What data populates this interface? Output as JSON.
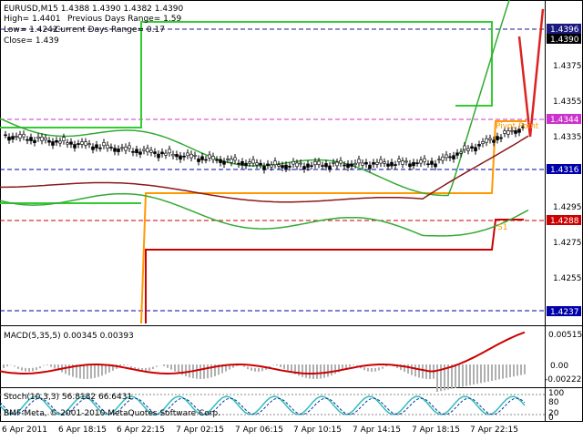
{
  "header": {
    "symbol_line": "EURUSD,M15  1.4388 1.4390 1.4382 1.4390",
    "high_label": "High= 1.4401",
    "prev_range_label": "Previous Days Range= 1.59",
    "low_label": "Low= 1.4242",
    "current_range_label": "Current Days Range= 0.17",
    "close_label": "Close= 1.439"
  },
  "price_axis": {
    "ticks": [
      "1.4375",
      "1.4355",
      "1.4335",
      "1.4295",
      "1.4275",
      "1.4255"
    ],
    "badges": [
      {
        "label": "1.4396",
        "color": "#1a1a80"
      },
      {
        "label": "1.4390",
        "color": "#000000"
      },
      {
        "label": "1.4344",
        "color": "#cc33cc"
      },
      {
        "label": "1.4316",
        "color": "#0000aa"
      },
      {
        "label": "1.4288",
        "color": "#cc0000"
      },
      {
        "label": "1.4237",
        "color": "#0000aa"
      }
    ]
  },
  "chart_labels": {
    "pivot_point": "Pivot Point",
    "s1": "S1"
  },
  "macd": {
    "title": "MACD(5,35,5) 0.00345 0.00393",
    "ticks": [
      "0.00515",
      "0.00",
      "-0.00222"
    ]
  },
  "stoch": {
    "title": "Stoch(10,3,3) 56.8182 66.6431",
    "ticks": [
      "100",
      "80",
      "20",
      "0"
    ]
  },
  "copyright": "BMF-Meta, © 2001-2010 MetaQuotes Software Corp.",
  "time_axis": [
    "6 Apr 2011",
    "6 Apr 18:15",
    "6 Apr 22:15",
    "7 Apr 02:15",
    "7 Apr 06:15",
    "7 Apr 10:15",
    "7 Apr 14:15",
    "7 Apr 18:15",
    "7 Apr 22:15"
  ],
  "colors": {
    "bollinger": "#33aa33",
    "ma": "#8b1a1a",
    "range_green": "#33cc33",
    "range_orange": "#ff9900",
    "range_red": "#cc0000",
    "macd_signal": "#cc0000",
    "stoch_main": "#33bbbb",
    "stoch_signal": "#003399"
  }
}
